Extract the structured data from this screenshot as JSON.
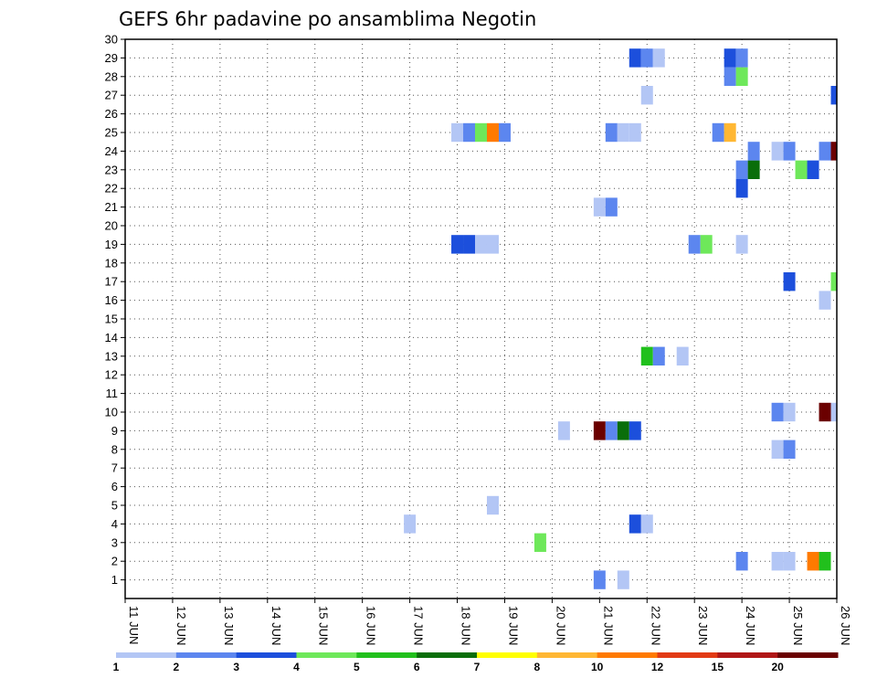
{
  "chart_data": {
    "type": "heatmap",
    "title": "GEFS 6hr padavine po ansamblima Negotin",
    "x_labels": [
      "11 JUN",
      "12 JUN",
      "13 JUN",
      "14 JUN",
      "15 JUN",
      "16 JUN",
      "17 JUN",
      "18 JUN",
      "19 JUN",
      "20 JUN",
      "21 JUN",
      "22 JUN",
      "23 JUN",
      "24 JUN",
      "25 JUN",
      "26 JUN"
    ],
    "y_labels": [
      "1",
      "2",
      "3",
      "4",
      "5",
      "6",
      "7",
      "8",
      "9",
      "10",
      "11",
      "12",
      "13",
      "14",
      "15",
      "16",
      "17",
      "18",
      "19",
      "20",
      "21",
      "22",
      "23",
      "24",
      "25",
      "26",
      "27",
      "28",
      "29",
      "30"
    ],
    "time_step_hours": 6,
    "grid": true,
    "legend_placement": "bottom",
    "legend": {
      "thresholds": [
        "1",
        "2",
        "3",
        "4",
        "5",
        "6",
        "7",
        "8",
        "10",
        "12",
        "15",
        "20"
      ],
      "colors": [
        "#b3c6f5",
        "#5c86ef",
        "#1c4fdc",
        "#6ee85a",
        "#21c01c",
        "#0a6e0a",
        "#ffff00",
        "#ffb733",
        "#ff7a00",
        "#e23a14",
        "#b01616",
        "#6b0000"
      ]
    },
    "cells": [
      {
        "x": "21 JUN 00",
        "member": 1,
        "category": 2
      },
      {
        "x": "21 JUN 12",
        "member": 1,
        "category": 1
      },
      {
        "x": "24 JUN 00",
        "member": 2,
        "category": 2
      },
      {
        "x": "24 JUN 18",
        "member": 2,
        "category": 1
      },
      {
        "x": "25 JUN 00",
        "member": 2,
        "category": 1
      },
      {
        "x": "25 JUN 12",
        "member": 2,
        "category": 10
      },
      {
        "x": "25 JUN 18",
        "member": 2,
        "category": 5
      },
      {
        "x": "19 JUN 18",
        "member": 3,
        "category": 4
      },
      {
        "x": "17 JUN 00",
        "member": 4,
        "category": 1
      },
      {
        "x": "21 JUN 18",
        "member": 4,
        "category": 3
      },
      {
        "x": "22 JUN 00",
        "member": 4,
        "category": 1
      },
      {
        "x": "18 JUN 18",
        "member": 5,
        "category": 1
      },
      {
        "x": "24 JUN 18",
        "member": 8,
        "category": 1
      },
      {
        "x": "25 JUN 00",
        "member": 8,
        "category": 2
      },
      {
        "x": "20 JUN 06",
        "member": 9,
        "category": 1
      },
      {
        "x": "21 JUN 00",
        "member": 9,
        "category": 20
      },
      {
        "x": "21 JUN 06",
        "member": 9,
        "category": 2
      },
      {
        "x": "21 JUN 12",
        "member": 9,
        "category": 6
      },
      {
        "x": "21 JUN 18",
        "member": 9,
        "category": 3
      },
      {
        "x": "24 JUN 18",
        "member": 10,
        "category": 2
      },
      {
        "x": "25 JUN 00",
        "member": 10,
        "category": 1
      },
      {
        "x": "25 JUN 18",
        "member": 10,
        "category": 20
      },
      {
        "x": "26 JUN 00",
        "member": 10,
        "category": 1
      },
      {
        "x": "22 JUN 00",
        "member": 13,
        "category": 5
      },
      {
        "x": "22 JUN 06",
        "member": 13,
        "category": 2
      },
      {
        "x": "22 JUN 18",
        "member": 13,
        "category": 1
      },
      {
        "x": "25 JUN 18",
        "member": 16,
        "category": 1
      },
      {
        "x": "25 JUN 00",
        "member": 17,
        "category": 3
      },
      {
        "x": "26 JUN 00",
        "member": 17,
        "category": 4
      },
      {
        "x": "18 JUN 00",
        "member": 19,
        "category": 3
      },
      {
        "x": "18 JUN 06",
        "member": 19,
        "category": 3
      },
      {
        "x": "18 JUN 12",
        "member": 19,
        "category": 1
      },
      {
        "x": "18 JUN 18",
        "member": 19,
        "category": 1
      },
      {
        "x": "23 JUN 00",
        "member": 19,
        "category": 2
      },
      {
        "x": "23 JUN 06",
        "member": 19,
        "category": 4
      },
      {
        "x": "24 JUN 00",
        "member": 19,
        "category": 1
      },
      {
        "x": "21 JUN 00",
        "member": 21,
        "category": 1
      },
      {
        "x": "21 JUN 06",
        "member": 21,
        "category": 2
      },
      {
        "x": "24 JUN 00",
        "member": 22,
        "category": 3
      },
      {
        "x": "24 JUN 00",
        "member": 23,
        "category": 2
      },
      {
        "x": "24 JUN 06",
        "member": 23,
        "category": 6
      },
      {
        "x": "25 JUN 06",
        "member": 23,
        "category": 4
      },
      {
        "x": "25 JUN 12",
        "member": 23,
        "category": 3
      },
      {
        "x": "24 JUN 06",
        "member": 24,
        "category": 2
      },
      {
        "x": "24 JUN 18",
        "member": 24,
        "category": 1
      },
      {
        "x": "25 JUN 00",
        "member": 24,
        "category": 2
      },
      {
        "x": "25 JUN 18",
        "member": 24,
        "category": 2
      },
      {
        "x": "26 JUN 00",
        "member": 24,
        "category": 20
      },
      {
        "x": "18 JUN 00",
        "member": 25,
        "category": 1
      },
      {
        "x": "18 JUN 06",
        "member": 25,
        "category": 2
      },
      {
        "x": "18 JUN 12",
        "member": 25,
        "category": 4
      },
      {
        "x": "18 JUN 18",
        "member": 25,
        "category": 10
      },
      {
        "x": "19 JUN 00",
        "member": 25,
        "category": 2
      },
      {
        "x": "21 JUN 06",
        "member": 25,
        "category": 2
      },
      {
        "x": "21 JUN 12",
        "member": 25,
        "category": 1
      },
      {
        "x": "21 JUN 18",
        "member": 25,
        "category": 1
      },
      {
        "x": "23 JUN 12",
        "member": 25,
        "category": 2
      },
      {
        "x": "23 JUN 18",
        "member": 25,
        "category": 8
      },
      {
        "x": "22 JUN 00",
        "member": 27,
        "category": 1
      },
      {
        "x": "26 JUN 00",
        "member": 27,
        "category": 3
      },
      {
        "x": "23 JUN 18",
        "member": 28,
        "category": 2
      },
      {
        "x": "24 JUN 00",
        "member": 28,
        "category": 4
      },
      {
        "x": "21 JUN 18",
        "member": 29,
        "category": 3
      },
      {
        "x": "22 JUN 00",
        "member": 29,
        "category": 2
      },
      {
        "x": "22 JUN 06",
        "member": 29,
        "category": 1
      },
      {
        "x": "23 JUN 18",
        "member": 29,
        "category": 3
      },
      {
        "x": "24 JUN 00",
        "member": 29,
        "category": 2
      }
    ]
  }
}
